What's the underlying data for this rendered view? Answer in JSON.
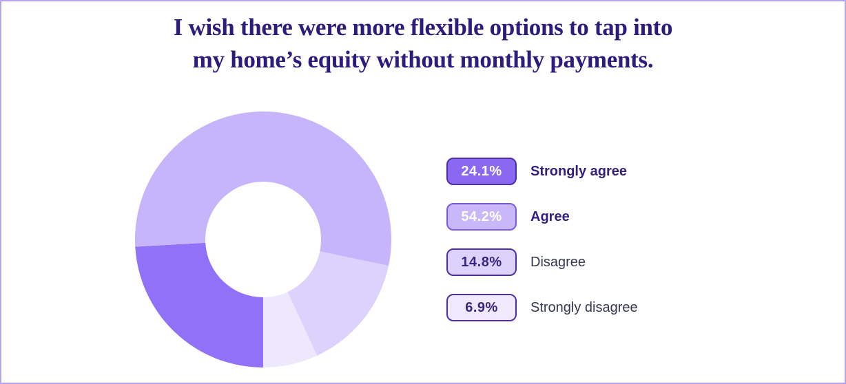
{
  "page": {
    "background": "#ffffff",
    "border_color": "#b6a3ec"
  },
  "title": {
    "line1": "I wish there were more flexible options to tap into",
    "line2": "my home’s equity without monthly payments.",
    "color": "#2e1c7d"
  },
  "chart_data": {
    "type": "pie",
    "donut": true,
    "title": "I wish there were more flexible options to tap into my home’s equity without monthly payments.",
    "categories": [
      "Strongly agree",
      "Agree",
      "Disagree",
      "Strongly disagree"
    ],
    "values": [
      24.1,
      54.2,
      14.8,
      6.9
    ],
    "colors": [
      "#9171f8",
      "#c7b5fb",
      "#ddd2fc",
      "#ede8fc"
    ],
    "start_angle_deg_from_top": 180,
    "direction": "clockwise",
    "inner_radius_ratio": 0.45,
    "legend_position": "right",
    "data_labels": [
      "24.1%",
      "54.2%",
      "14.8%",
      "6.9%"
    ]
  },
  "legend": {
    "items": [
      {
        "value_label": "24.1%",
        "label": "Strongly agree",
        "badge_bg": "#8a68f2",
        "badge_border": "#4e2ea8",
        "badge_text_color": "#ffffff",
        "label_color": "#33207e",
        "label_bold": true
      },
      {
        "value_label": "54.2%",
        "label": "Agree",
        "badge_bg": "#c9b7fa",
        "badge_border": "#7b5be6",
        "badge_text_color": "#ffffff",
        "label_color": "#33207e",
        "label_bold": true
      },
      {
        "value_label": "14.8%",
        "label": "Disagree",
        "badge_bg": "#dcd2fb",
        "badge_border": "#4e2ea8",
        "badge_text_color": "#3a2680",
        "label_color": "#343851",
        "label_bold": false
      },
      {
        "value_label": "6.9%",
        "label": "Strongly disagree",
        "badge_bg": "#efeafd",
        "badge_border": "#4e2ea8",
        "badge_text_color": "#3a2680",
        "label_color": "#343851",
        "label_bold": false
      }
    ]
  }
}
